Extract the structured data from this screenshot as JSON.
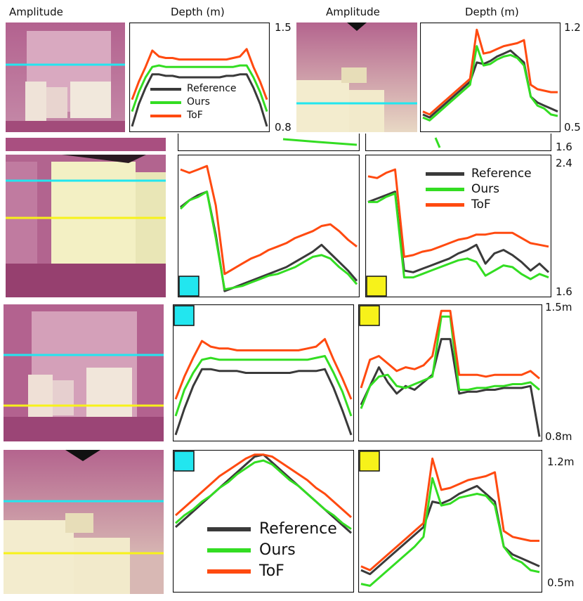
{
  "header": {
    "col1": "Amplitude",
    "col2": "Depth (m)",
    "col3": "Amplitude",
    "col4": "Depth (m)"
  },
  "legend": {
    "reference": "Reference",
    "ours": "Ours",
    "tof": "ToF"
  },
  "colors": {
    "reference": "#3a3a3a",
    "ours": "#33dd22",
    "tof": "#ff4a10",
    "cyan_marker": "#22e6ef",
    "yellow_marker": "#f7f21a",
    "amp_pink": "#b3628f",
    "amp_bright": "#f3f0c4"
  },
  "axis_labels": {
    "p1_top": "1.5",
    "p1_bottom": "0.8",
    "p2_top": "1.2",
    "p2_bottom": "0.5",
    "s1_mid": "1.6",
    "s1_top": "2.4",
    "s1_bottom": "1.6",
    "s2_top": "1.5m",
    "s2_bottom": "0.8m",
    "s3_top": "1.2m",
    "s3_bottom": "0.5m"
  },
  "icons": {
    "marker": "color-square-icon"
  },
  "chart_data": [
    {
      "id": "panel-top-left",
      "type": "line",
      "title": "Depth (m)",
      "ylim": [
        0.8,
        1.5
      ],
      "x": [
        0,
        1,
        2,
        3,
        4,
        5,
        6,
        7,
        8,
        9,
        10,
        11,
        12,
        13,
        14,
        15,
        16,
        17,
        18,
        19,
        20
      ],
      "series": [
        {
          "name": "Reference",
          "values": [
            0.82,
            0.97,
            1.08,
            1.17,
            1.17,
            1.16,
            1.16,
            1.15,
            1.15,
            1.15,
            1.15,
            1.15,
            1.15,
            1.15,
            1.16,
            1.16,
            1.17,
            1.17,
            1.08,
            0.97,
            0.82
          ]
        },
        {
          "name": "Ours",
          "values": [
            0.92,
            1.05,
            1.15,
            1.22,
            1.23,
            1.22,
            1.22,
            1.22,
            1.22,
            1.22,
            1.22,
            1.22,
            1.22,
            1.22,
            1.22,
            1.22,
            1.23,
            1.23,
            1.15,
            1.05,
            0.92
          ]
        },
        {
          "name": "ToF",
          "values": [
            1.0,
            1.12,
            1.22,
            1.33,
            1.29,
            1.28,
            1.28,
            1.27,
            1.27,
            1.27,
            1.27,
            1.27,
            1.27,
            1.27,
            1.27,
            1.28,
            1.29,
            1.34,
            1.22,
            1.12,
            1.0
          ]
        }
      ]
    },
    {
      "id": "panel-top-right",
      "type": "line",
      "title": "Depth (m)",
      "ylim": [
        0.5,
        1.2
      ],
      "x": [
        0,
        1,
        2,
        3,
        4,
        5,
        6,
        7,
        8,
        9,
        10,
        11,
        12,
        13,
        14,
        15,
        16,
        17,
        18,
        19,
        20
      ],
      "series": [
        {
          "name": "Reference",
          "values": [
            0.6,
            0.58,
            0.62,
            0.66,
            0.7,
            0.74,
            0.78,
            0.82,
            0.95,
            0.94,
            0.96,
            0.99,
            1.01,
            1.03,
            0.99,
            0.95,
            0.72,
            0.68,
            0.66,
            0.64,
            0.62
          ]
        },
        {
          "name": "Ours",
          "values": [
            0.58,
            0.56,
            0.6,
            0.64,
            0.68,
            0.72,
            0.76,
            0.8,
            1.06,
            0.93,
            0.94,
            0.97,
            0.99,
            1.0,
            0.98,
            0.93,
            0.72,
            0.66,
            0.64,
            0.6,
            0.59
          ]
        },
        {
          "name": "ToF",
          "values": [
            0.62,
            0.6,
            0.64,
            0.68,
            0.72,
            0.76,
            0.8,
            0.84,
            1.17,
            1.01,
            1.02,
            1.04,
            1.06,
            1.07,
            1.08,
            1.1,
            0.8,
            0.77,
            0.76,
            0.75,
            0.75
          ]
        }
      ]
    },
    {
      "id": "panel-s1-cyan",
      "type": "line",
      "ylim": [
        1.6,
        2.4
      ],
      "x": [
        0,
        1,
        2,
        3,
        4,
        5,
        6,
        7,
        8,
        9,
        10,
        11,
        12,
        13,
        14,
        15,
        16,
        17,
        18,
        19,
        20
      ],
      "series": [
        {
          "name": "Reference",
          "values": [
            2.11,
            2.15,
            2.18,
            2.2,
            1.95,
            1.62,
            1.64,
            1.66,
            1.68,
            1.7,
            1.72,
            1.74,
            1.76,
            1.79,
            1.82,
            1.85,
            1.89,
            1.84,
            1.79,
            1.74,
            1.68
          ]
        },
        {
          "name": "Ours",
          "values": [
            2.1,
            2.15,
            2.17,
            2.2,
            1.93,
            1.63,
            1.64,
            1.65,
            1.67,
            1.69,
            1.71,
            1.72,
            1.74,
            1.76,
            1.79,
            1.82,
            1.83,
            1.81,
            1.76,
            1.72,
            1.66
          ]
        },
        {
          "name": "ToF",
          "values": [
            2.33,
            2.31,
            2.33,
            2.35,
            2.12,
            1.72,
            1.75,
            1.78,
            1.81,
            1.83,
            1.86,
            1.88,
            1.9,
            1.93,
            1.95,
            1.97,
            2.0,
            2.01,
            1.97,
            1.92,
            1.88
          ]
        }
      ]
    },
    {
      "id": "panel-s1-yellow",
      "type": "line",
      "ylim": [
        1.6,
        2.4
      ],
      "x": [
        0,
        1,
        2,
        3,
        4,
        5,
        6,
        7,
        8,
        9,
        10,
        11,
        12,
        13,
        14,
        15,
        16,
        17,
        18,
        19,
        20
      ],
      "series": [
        {
          "name": "Reference",
          "values": [
            2.14,
            2.16,
            2.18,
            2.2,
            1.74,
            1.73,
            1.75,
            1.77,
            1.79,
            1.81,
            1.84,
            1.86,
            1.89,
            1.78,
            1.84,
            1.86,
            1.83,
            1.79,
            1.74,
            1.78,
            1.73
          ]
        },
        {
          "name": "Ours",
          "values": [
            2.14,
            2.14,
            2.17,
            2.19,
            1.7,
            1.7,
            1.72,
            1.74,
            1.76,
            1.78,
            1.8,
            1.81,
            1.79,
            1.71,
            1.74,
            1.77,
            1.76,
            1.72,
            1.69,
            1.72,
            1.7
          ]
        },
        {
          "name": "ToF",
          "values": [
            2.29,
            2.28,
            2.31,
            2.33,
            1.82,
            1.83,
            1.85,
            1.86,
            1.88,
            1.9,
            1.92,
            1.93,
            1.95,
            1.95,
            1.96,
            1.96,
            1.96,
            1.93,
            1.9,
            1.89,
            1.88
          ]
        }
      ]
    },
    {
      "id": "panel-s2-cyan",
      "type": "line",
      "ylim": [
        0.8,
        1.5
      ],
      "x": [
        0,
        1,
        2,
        3,
        4,
        5,
        6,
        7,
        8,
        9,
        10,
        11,
        12,
        13,
        14,
        15,
        16,
        17,
        18,
        19,
        20
      ],
      "series": [
        {
          "name": "Reference",
          "values": [
            0.82,
            0.96,
            1.08,
            1.17,
            1.17,
            1.16,
            1.16,
            1.16,
            1.15,
            1.15,
            1.15,
            1.15,
            1.15,
            1.15,
            1.16,
            1.16,
            1.16,
            1.17,
            1.07,
            0.95,
            0.82
          ]
        },
        {
          "name": "Ours",
          "values": [
            0.92,
            1.06,
            1.15,
            1.22,
            1.23,
            1.22,
            1.22,
            1.22,
            1.22,
            1.22,
            1.22,
            1.22,
            1.22,
            1.22,
            1.22,
            1.22,
            1.23,
            1.24,
            1.15,
            1.05,
            0.92
          ]
        },
        {
          "name": "ToF",
          "values": [
            1.01,
            1.13,
            1.23,
            1.32,
            1.29,
            1.28,
            1.28,
            1.27,
            1.27,
            1.27,
            1.27,
            1.27,
            1.27,
            1.27,
            1.27,
            1.28,
            1.29,
            1.33,
            1.22,
            1.12,
            1.01
          ]
        }
      ]
    },
    {
      "id": "panel-s2-yellow",
      "type": "line",
      "ylim": [
        0.8,
        1.5
      ],
      "x": [
        0,
        1,
        2,
        3,
        4,
        5,
        6,
        7,
        8,
        9,
        10,
        11,
        12,
        13,
        14,
        15,
        16,
        17,
        18,
        19,
        20
      ],
      "series": [
        {
          "name": "Reference",
          "values": [
            0.98,
            1.08,
            1.18,
            1.1,
            1.04,
            1.08,
            1.06,
            1.1,
            1.14,
            1.33,
            1.33,
            1.04,
            1.05,
            1.05,
            1.06,
            1.06,
            1.07,
            1.07,
            1.07,
            1.08,
            0.81
          ]
        },
        {
          "name": "Ours",
          "values": [
            0.96,
            1.08,
            1.13,
            1.14,
            1.08,
            1.07,
            1.09,
            1.11,
            1.13,
            1.45,
            1.45,
            1.06,
            1.06,
            1.07,
            1.07,
            1.08,
            1.08,
            1.09,
            1.09,
            1.1,
            1.06
          ]
        },
        {
          "name": "ToF",
          "values": [
            1.07,
            1.22,
            1.24,
            1.2,
            1.16,
            1.18,
            1.17,
            1.19,
            1.24,
            1.48,
            1.48,
            1.14,
            1.14,
            1.14,
            1.13,
            1.14,
            1.14,
            1.14,
            1.14,
            1.16,
            1.12
          ]
        }
      ]
    },
    {
      "id": "panel-s3-cyan",
      "type": "line",
      "ylim": [
        0.5,
        1.2
      ],
      "x": [
        0,
        1,
        2,
        3,
        4,
        5,
        6,
        7,
        8,
        9,
        10,
        11,
        12,
        13,
        14,
        15,
        16,
        17,
        18,
        19,
        20
      ],
      "series": [
        {
          "name": "Reference",
          "values": [
            0.82,
            0.86,
            0.9,
            0.94,
            0.98,
            1.02,
            1.06,
            1.1,
            1.14,
            1.18,
            1.19,
            1.15,
            1.11,
            1.07,
            1.03,
            0.99,
            0.95,
            0.91,
            0.87,
            0.83,
            0.79
          ]
        },
        {
          "name": "Ours",
          "values": [
            0.84,
            0.88,
            0.91,
            0.95,
            0.98,
            1.02,
            1.05,
            1.09,
            1.12,
            1.15,
            1.16,
            1.14,
            1.1,
            1.06,
            1.03,
            0.99,
            0.95,
            0.91,
            0.88,
            0.84,
            0.81
          ]
        },
        {
          "name": "ToF",
          "values": [
            0.88,
            0.92,
            0.96,
            1.0,
            1.04,
            1.08,
            1.11,
            1.14,
            1.17,
            1.19,
            1.19,
            1.18,
            1.15,
            1.12,
            1.09,
            1.06,
            1.02,
            0.99,
            0.95,
            0.91,
            0.87
          ]
        }
      ]
    },
    {
      "id": "panel-s3-yellow",
      "type": "line",
      "ylim": [
        0.5,
        1.2
      ],
      "x": [
        0,
        1,
        2,
        3,
        4,
        5,
        6,
        7,
        8,
        9,
        10,
        11,
        12,
        13,
        14,
        15,
        16,
        17,
        18,
        19,
        20
      ],
      "series": [
        {
          "name": "Reference",
          "values": [
            0.6,
            0.58,
            0.62,
            0.66,
            0.7,
            0.74,
            0.78,
            0.82,
            0.95,
            0.94,
            0.96,
            0.99,
            1.01,
            1.03,
            0.99,
            0.95,
            0.72,
            0.68,
            0.66,
            0.64,
            0.62
          ]
        },
        {
          "name": "Ours",
          "values": [
            0.53,
            0.52,
            0.56,
            0.6,
            0.64,
            0.68,
            0.72,
            0.77,
            1.07,
            0.93,
            0.94,
            0.97,
            0.98,
            0.99,
            0.98,
            0.93,
            0.72,
            0.66,
            0.64,
            0.6,
            0.59
          ]
        },
        {
          "name": "ToF",
          "values": [
            0.62,
            0.6,
            0.64,
            0.68,
            0.72,
            0.76,
            0.8,
            0.84,
            1.17,
            1.01,
            1.02,
            1.04,
            1.06,
            1.07,
            1.08,
            1.1,
            0.8,
            0.77,
            0.76,
            0.75,
            0.75
          ]
        }
      ]
    }
  ]
}
